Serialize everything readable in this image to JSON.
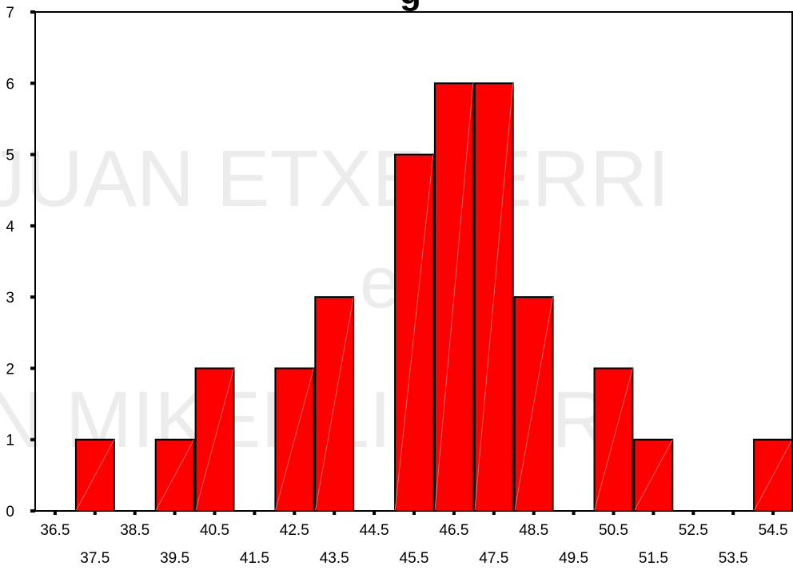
{
  "chart_data": {
    "type": "bar",
    "title_fragment": "g",
    "xlabel": "",
    "ylabel": "",
    "ylim": [
      0,
      7
    ],
    "yticks": [
      0,
      1,
      2,
      3,
      4,
      5,
      6,
      7
    ],
    "x_ticks_upper": [
      "36.5",
      "38.5",
      "40.5",
      "42.5",
      "44.5",
      "46.5",
      "48.5",
      "50.5",
      "52.5",
      "54.5"
    ],
    "x_ticks_lower": [
      "37.5",
      "39.5",
      "41.5",
      "43.5",
      "45.5",
      "47.5",
      "49.5",
      "51.5",
      "53.5"
    ],
    "categories": [
      "36.5",
      "37.5",
      "38.5",
      "39.5",
      "40.5",
      "41.5",
      "42.5",
      "43.5",
      "44.5",
      "45.5",
      "46.5",
      "47.5",
      "48.5",
      "49.5",
      "50.5",
      "51.5",
      "52.5",
      "53.5",
      "54.5"
    ],
    "values": [
      0,
      1,
      0,
      1,
      2,
      0,
      2,
      3,
      0,
      5,
      6,
      6,
      3,
      0,
      2,
      1,
      0,
      0,
      1
    ],
    "bar_color": "#ff0000",
    "grid": false,
    "legend": "none"
  },
  "watermark": {
    "line1": "JUAN ETXEBERRI",
    "line2": "eta",
    "line3": "N MIKEL LIZARR"
  }
}
